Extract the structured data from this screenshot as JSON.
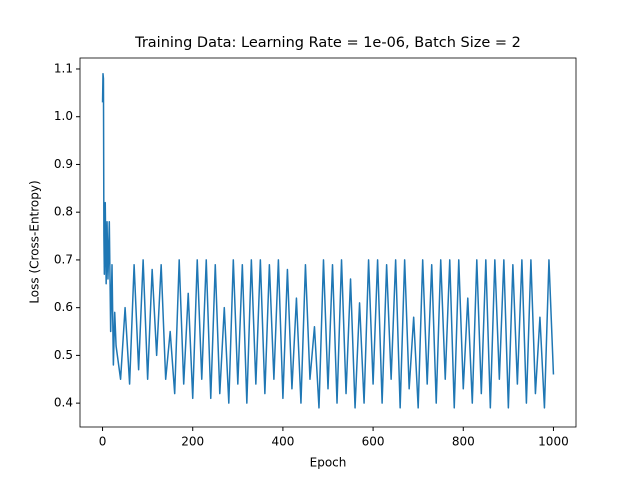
{
  "chart_data": {
    "type": "line",
    "title": "Training Data: Learning Rate = 1e-06, Batch Size = 2",
    "xlabel": "Epoch",
    "ylabel": "Loss (Cross-Entropy)",
    "color": "#1f77b4",
    "x": [
      0,
      1,
      2,
      3,
      4,
      6,
      8,
      10,
      12,
      15,
      18,
      21,
      24,
      27,
      30,
      40,
      50,
      60,
      70,
      80,
      90,
      100,
      110,
      120,
      130,
      140,
      150,
      160,
      170,
      180,
      190,
      200,
      210,
      220,
      230,
      240,
      250,
      260,
      270,
      280,
      290,
      300,
      310,
      320,
      330,
      340,
      350,
      360,
      370,
      380,
      390,
      400,
      410,
      420,
      430,
      440,
      450,
      460,
      470,
      480,
      490,
      500,
      510,
      520,
      530,
      540,
      550,
      560,
      570,
      580,
      590,
      600,
      610,
      620,
      630,
      640,
      650,
      660,
      670,
      680,
      690,
      700,
      710,
      720,
      730,
      740,
      750,
      760,
      770,
      780,
      790,
      800,
      810,
      820,
      830,
      840,
      850,
      860,
      870,
      880,
      890,
      900,
      910,
      920,
      930,
      940,
      950,
      960,
      970,
      980,
      990,
      1000
    ],
    "values": [
      1.03,
      1.09,
      1.08,
      0.75,
      0.67,
      0.82,
      0.65,
      0.78,
      0.66,
      0.78,
      0.55,
      0.69,
      0.48,
      0.59,
      0.52,
      0.45,
      0.6,
      0.44,
      0.69,
      0.47,
      0.7,
      0.45,
      0.68,
      0.5,
      0.69,
      0.45,
      0.55,
      0.42,
      0.7,
      0.44,
      0.63,
      0.41,
      0.7,
      0.45,
      0.7,
      0.41,
      0.69,
      0.42,
      0.6,
      0.4,
      0.7,
      0.44,
      0.69,
      0.4,
      0.7,
      0.44,
      0.7,
      0.42,
      0.69,
      0.45,
      0.7,
      0.41,
      0.68,
      0.43,
      0.62,
      0.4,
      0.69,
      0.45,
      0.56,
      0.39,
      0.7,
      0.43,
      0.69,
      0.4,
      0.7,
      0.42,
      0.66,
      0.39,
      0.61,
      0.4,
      0.7,
      0.44,
      0.7,
      0.4,
      0.69,
      0.45,
      0.7,
      0.39,
      0.7,
      0.43,
      0.58,
      0.39,
      0.7,
      0.44,
      0.69,
      0.4,
      0.7,
      0.45,
      0.7,
      0.39,
      0.7,
      0.43,
      0.62,
      0.4,
      0.7,
      0.42,
      0.7,
      0.39,
      0.7,
      0.45,
      0.7,
      0.39,
      0.69,
      0.44,
      0.7,
      0.4,
      0.7,
      0.42,
      0.58,
      0.39,
      0.7,
      0.46
    ],
    "xlim": [
      -50,
      1050
    ],
    "xticks": [
      0,
      200,
      400,
      600,
      800,
      1000
    ],
    "ylim": [
      0.35,
      1.123
    ],
    "yticks": [
      0.4,
      0.5,
      0.6,
      0.7,
      0.8,
      0.9,
      {
        "value": 1,
        "label": "1.0"
      },
      1.1
    ]
  }
}
